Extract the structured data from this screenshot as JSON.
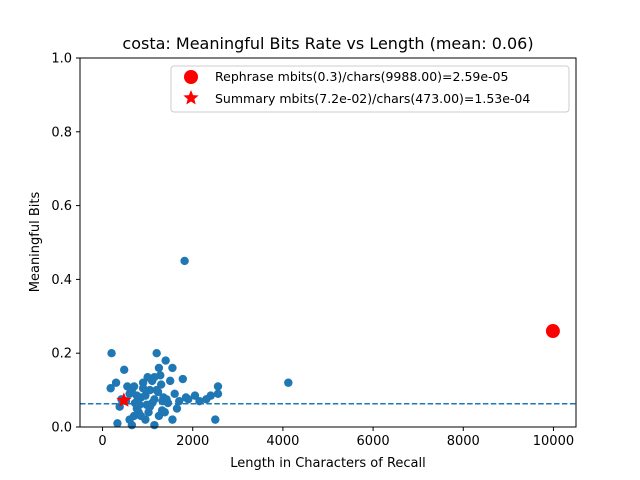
{
  "chart_data": {
    "type": "scatter",
    "title": "costa: Meaningful Bits Rate vs Length (mean: 0.06)",
    "xlabel": "Length in Characters of Recall",
    "ylabel": "Meaningful Bits",
    "xlim": [
      -500,
      10500
    ],
    "ylim": [
      0.0,
      1.0
    ],
    "xticks": [
      0,
      2000,
      4000,
      6000,
      8000,
      10000
    ],
    "yticks": [
      0.0,
      0.2,
      0.4,
      0.6,
      0.8,
      1.0
    ],
    "xtick_labels": [
      "0",
      "2000",
      "4000",
      "6000",
      "8000",
      "10000"
    ],
    "ytick_labels": [
      "0.0",
      "0.2",
      "0.4",
      "0.6",
      "0.8",
      "1.0"
    ],
    "grid": false,
    "mean_line": {
      "y": 0.063,
      "style": "dashed",
      "color": "#1f77b4"
    },
    "legend": {
      "placement": "top-right",
      "entries": [
        {
          "label": "Rephrase mbits(0.3)/chars(9988.00)=2.59e-05",
          "marker": "circle",
          "color": "#ff0000"
        },
        {
          "label": "Summary mbits(7.2e-02)/chars(473.00)=1.53e-04",
          "marker": "star",
          "color": "#ff0000"
        }
      ]
    },
    "series": [
      {
        "marker": "circle",
        "color": "#1f77b4",
        "points": [
          [
            200,
            0.2
          ],
          [
            180,
            0.105
          ],
          [
            300,
            0.12
          ],
          [
            380,
            0.055
          ],
          [
            420,
            0.075
          ],
          [
            330,
            0.01
          ],
          [
            480,
            0.155
          ],
          [
            550,
            0.11
          ],
          [
            600,
            0.09
          ],
          [
            650,
            0.1
          ],
          [
            700,
            0.11
          ],
          [
            720,
            0.065
          ],
          [
            760,
            0.05
          ],
          [
            800,
            0.04
          ],
          [
            850,
            0.08
          ],
          [
            900,
            0.12
          ],
          [
            950,
            0.085
          ],
          [
            980,
            0.06
          ],
          [
            1000,
            0.135
          ],
          [
            1050,
            0.1
          ],
          [
            1100,
            0.125
          ],
          [
            1150,
            0.075
          ],
          [
            1200,
            0.2
          ],
          [
            1250,
            0.16
          ],
          [
            1280,
            0.14
          ],
          [
            1300,
            0.115
          ],
          [
            1350,
            0.08
          ],
          [
            1400,
            0.18
          ],
          [
            1450,
            0.065
          ],
          [
            1500,
            0.125
          ],
          [
            1550,
            0.16
          ],
          [
            1600,
            0.09
          ],
          [
            1650,
            0.05
          ],
          [
            1700,
            0.07
          ],
          [
            1780,
            0.13
          ],
          [
            1850,
            0.08
          ],
          [
            1900,
            0.075
          ],
          [
            2050,
            0.085
          ],
          [
            2150,
            0.07
          ],
          [
            2300,
            0.075
          ],
          [
            2400,
            0.085
          ],
          [
            2500,
            0.02
          ],
          [
            2560,
            0.11
          ],
          [
            2560,
            0.09
          ],
          [
            1250,
            0.03
          ],
          [
            1380,
            0.04
          ],
          [
            1550,
            0.02
          ],
          [
            1150,
            0.005
          ],
          [
            950,
            0.02
          ],
          [
            700,
            0.03
          ],
          [
            650,
            0.005
          ],
          [
            600,
            0.02
          ],
          [
            850,
            0.03
          ],
          [
            1020,
            0.04
          ],
          [
            1100,
            0.065
          ],
          [
            1200,
            0.1
          ],
          [
            1320,
            0.045
          ],
          [
            1420,
            0.075
          ],
          [
            760,
            0.085
          ],
          [
            520,
            0.07
          ],
          [
            900,
            0.105
          ],
          [
            1150,
            0.135
          ],
          [
            1230,
            0.095
          ],
          [
            1330,
            0.07
          ],
          [
            1050,
            0.055
          ],
          [
            820,
            0.06
          ],
          [
            1820,
            0.45
          ],
          [
            4120,
            0.12
          ]
        ]
      },
      {
        "name": "Rephrase mbits(0.3)/chars(9988.00)=2.59e-05",
        "marker": "circle",
        "color": "#ff0000",
        "points": [
          [
            9988,
            0.26
          ]
        ]
      },
      {
        "name": "Summary mbits(7.2e-02)/chars(473.00)=1.53e-04",
        "marker": "star",
        "color": "#ff0000",
        "points": [
          [
            473,
            0.072
          ]
        ]
      }
    ]
  }
}
